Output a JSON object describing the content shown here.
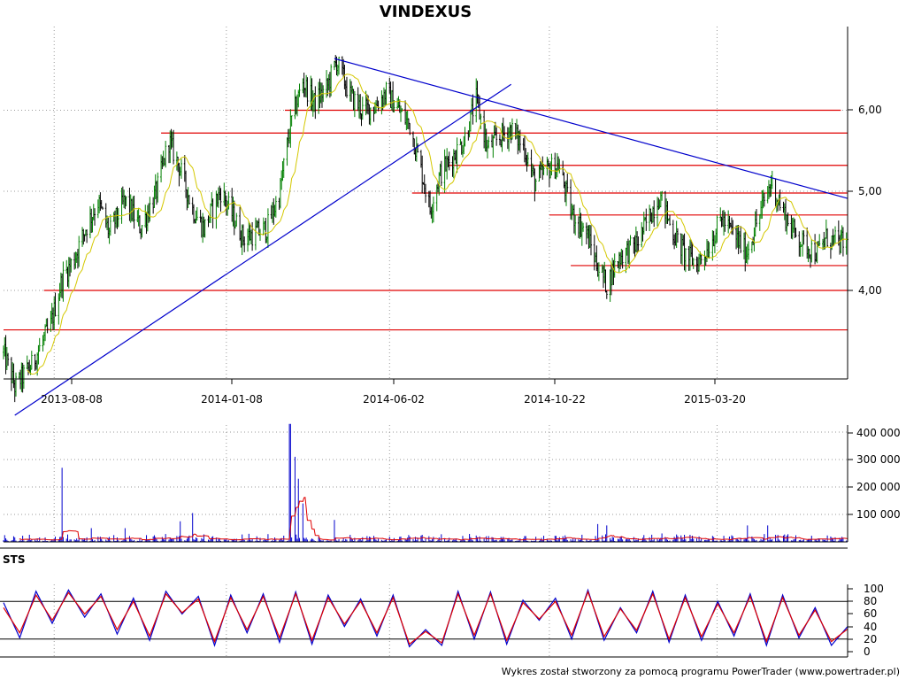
{
  "chart_data": [
    {
      "type": "candlestick",
      "title": "VINDEXUS",
      "x_tick_labels": [
        "2013-08-08",
        "2014-01-08",
        "2014-06-02",
        "2014-10-22",
        "2015-03-20"
      ],
      "x_range": [
        "2013-06-24",
        "2015-07-14"
      ],
      "y_tick_labels": [
        "4,00",
        "5,00",
        "6,00"
      ],
      "y_ticks": [
        4.0,
        5.0,
        6.0
      ],
      "ylim": [
        3.0,
        6.85
      ],
      "log_scale": true,
      "grid": true,
      "price_path": [
        [
          "2013-06-24",
          3.48
        ],
        [
          "2013-07-04",
          3.22
        ],
        [
          "2013-07-19",
          3.38
        ],
        [
          "2013-08-05",
          3.7
        ],
        [
          "2013-08-15",
          4.1
        ],
        [
          "2013-08-26",
          4.3
        ],
        [
          "2013-09-05",
          4.6
        ],
        [
          "2013-09-16",
          4.88
        ],
        [
          "2013-09-26",
          4.55
        ],
        [
          "2013-10-10",
          4.9
        ],
        [
          "2013-10-24",
          4.6
        ],
        [
          "2013-11-07",
          5.0
        ],
        [
          "2013-11-18",
          5.6
        ],
        [
          "2013-11-28",
          5.25
        ],
        [
          "2013-12-09",
          4.8
        ],
        [
          "2013-12-19",
          4.6
        ],
        [
          "2014-01-03",
          5.0
        ],
        [
          "2014-01-13",
          4.75
        ],
        [
          "2014-01-23",
          4.5
        ],
        [
          "2014-02-03",
          4.55
        ],
        [
          "2014-02-13",
          4.6
        ],
        [
          "2014-02-24",
          4.95
        ],
        [
          "2014-03-06",
          5.8
        ],
        [
          "2014-03-17",
          6.4
        ],
        [
          "2014-03-27",
          6.1
        ],
        [
          "2014-04-07",
          6.3
        ],
        [
          "2014-04-16",
          6.7
        ],
        [
          "2014-04-28",
          6.2
        ],
        [
          "2014-05-09",
          6.0
        ],
        [
          "2014-05-20",
          6.05
        ],
        [
          "2014-05-30",
          6.25
        ],
        [
          "2014-06-10",
          6.0
        ],
        [
          "2014-06-20",
          5.8
        ],
        [
          "2014-06-30",
          5.25
        ],
        [
          "2014-07-08",
          4.8
        ],
        [
          "2014-07-17",
          5.2
        ],
        [
          "2014-07-28",
          5.4
        ],
        [
          "2014-08-07",
          5.6
        ],
        [
          "2014-08-18",
          6.15
        ],
        [
          "2014-08-28",
          5.5
        ],
        [
          "2014-09-08",
          5.65
        ],
        [
          "2014-09-18",
          5.75
        ],
        [
          "2014-09-30",
          5.5
        ],
        [
          "2014-10-09",
          5.1
        ],
        [
          "2014-10-20",
          5.25
        ],
        [
          "2014-10-30",
          5.3
        ],
        [
          "2014-11-11",
          4.75
        ],
        [
          "2014-11-24",
          4.55
        ],
        [
          "2014-12-03",
          4.25
        ],
        [
          "2014-12-12",
          4.05
        ],
        [
          "2014-12-22",
          4.3
        ],
        [
          "2015-01-08",
          4.45
        ],
        [
          "2015-01-20",
          4.75
        ],
        [
          "2015-01-28",
          4.95
        ],
        [
          "2015-02-09",
          4.55
        ],
        [
          "2015-02-19",
          4.35
        ],
        [
          "2015-03-02",
          4.25
        ],
        [
          "2015-03-12",
          4.4
        ],
        [
          "2015-03-24",
          4.7
        ],
        [
          "2015-04-03",
          4.55
        ],
        [
          "2015-04-15",
          4.35
        ],
        [
          "2015-04-27",
          4.75
        ],
        [
          "2015-05-07",
          5.1
        ],
        [
          "2015-05-15",
          4.85
        ],
        [
          "2015-05-25",
          4.6
        ],
        [
          "2015-06-04",
          4.45
        ],
        [
          "2015-06-17",
          4.35
        ],
        [
          "2015-06-25",
          4.5
        ],
        [
          "2015-07-06",
          4.45
        ],
        [
          "2015-07-14",
          4.45
        ]
      ],
      "series": [
        {
          "name": "",
          "kind": "moving average",
          "color": "#d4c800"
        }
      ],
      "horizontal_lines": [
        {
          "y": 3.66,
          "from": "2013-06-24",
          "to": "2015-07-14"
        },
        {
          "y": 4.0,
          "from": "2013-07-30",
          "to": "2015-07-14"
        },
        {
          "y": 4.23,
          "from": "2014-11-10",
          "to": "2015-07-14"
        },
        {
          "y": 4.74,
          "from": "2014-10-22",
          "to": "2015-07-14"
        },
        {
          "y": 4.98,
          "from": "2014-06-22",
          "to": "2015-07-14"
        },
        {
          "y": 5.3,
          "from": "2014-07-24",
          "to": "2015-07-14"
        },
        {
          "y": 5.7,
          "from": "2013-11-11",
          "to": "2015-07-14"
        },
        {
          "y": 6.0,
          "from": "2014-03-01",
          "to": "2015-07-08"
        }
      ],
      "trend_lines": [
        {
          "from": [
            "2013-07-04",
            3.02
          ],
          "to": [
            "2014-09-18",
            6.36
          ]
        },
        {
          "from": [
            "2014-04-14",
            6.74
          ],
          "to": [
            "2015-07-14",
            4.92
          ]
        }
      ],
      "colors": {
        "up": "#008000",
        "down": "#000000",
        "levels": "#e00000",
        "trend": "#0000cc",
        "ma": "#d4c800"
      }
    },
    {
      "type": "bar",
      "panel": "volume",
      "y_tick_labels": [
        "100 000",
        "200 000",
        "300 000",
        "400 000"
      ],
      "y_ticks": [
        100000,
        200000,
        300000,
        400000
      ],
      "ylim": [
        0,
        440000
      ],
      "spikes": [
        [
          "2013-08-15",
          270000
        ],
        [
          "2013-09-10",
          50000
        ],
        [
          "2013-10-10",
          50000
        ],
        [
          "2013-11-10",
          40000
        ],
        [
          "2013-11-28",
          75000
        ],
        [
          "2013-12-09",
          105000
        ],
        [
          "2014-03-05",
          430000
        ],
        [
          "2014-03-06",
          430000
        ],
        [
          "2014-03-10",
          310000
        ],
        [
          "2014-03-13",
          230000
        ],
        [
          "2014-03-17",
          140000
        ],
        [
          "2014-04-14",
          80000
        ],
        [
          "2014-12-04",
          65000
        ],
        [
          "2014-12-12",
          60000
        ],
        [
          "2015-01-24",
          110000
        ],
        [
          "2015-04-16",
          60000
        ],
        [
          "2015-05-04",
          60000
        ]
      ],
      "colors": {
        "bars": "#0000cc",
        "average": "#e00000"
      }
    },
    {
      "type": "line",
      "panel": "STS",
      "panel_label": "STS",
      "y_tick_labels": [
        "0",
        "20",
        "40",
        "60",
        "80",
        "100"
      ],
      "y_ticks": [
        0,
        20,
        40,
        60,
        80,
        100
      ],
      "ylim": [
        0,
        100
      ],
      "reference_lines": [
        20,
        80
      ],
      "series": [
        {
          "name": "",
          "color": "#0000cc",
          "values": [
            78,
            22,
            96,
            45,
            98,
            55,
            92,
            28,
            85,
            18,
            96,
            60,
            88,
            10,
            90,
            30,
            92,
            15,
            95,
            12,
            90,
            40,
            84,
            25,
            90,
            8,
            35,
            10,
            96,
            20,
            95,
            12,
            82,
            50,
            85,
            20,
            98,
            18,
            70,
            30,
            96,
            15,
            90,
            18,
            80,
            25,
            92,
            10,
            90,
            22,
            70,
            10,
            40
          ]
        },
        {
          "name": "",
          "color": "#e00000",
          "values": [
            70,
            30,
            90,
            50,
            94,
            60,
            88,
            35,
            80,
            25,
            92,
            62,
            84,
            16,
            86,
            35,
            88,
            22,
            92,
            18,
            86,
            44,
            80,
            30,
            86,
            12,
            32,
            14,
            92,
            26,
            92,
            18,
            78,
            52,
            80,
            26,
            95,
            24,
            68,
            34,
            92,
            20,
            86,
            24,
            76,
            30,
            88,
            16,
            86,
            26,
            66,
            16,
            36
          ]
        }
      ]
    }
  ],
  "footer": "Wykres został stworzony za pomocą programu PowerTrader (www.powertrader.pl)"
}
